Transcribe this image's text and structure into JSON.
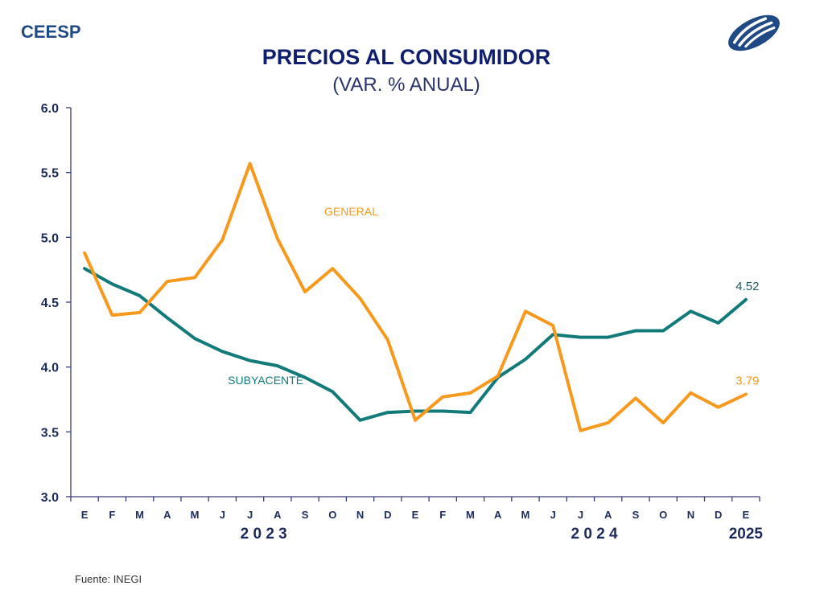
{
  "header": {
    "brand": "CEESP",
    "logo_icon": "ceesp-logo-icon"
  },
  "footer": {
    "source": "Fuente: INEGI"
  },
  "colors": {
    "general": "#f7991c",
    "subyacente": "#127b7a",
    "axis": "#3a3d7c",
    "text": "#1d2a5c",
    "title": "#0f1f6e",
    "brand": "#1f4a86"
  },
  "chart_data": {
    "type": "line",
    "title": "PRECIOS AL CONSUMIDOR",
    "subtitle": "(VAR. % ANUAL)",
    "xlabel": "",
    "ylabel": "",
    "ylim": [
      3.0,
      6.0
    ],
    "yticks": [
      "3.0",
      "3.5",
      "4.0",
      "4.5",
      "5.0",
      "5.5",
      "6.0"
    ],
    "grid": false,
    "categories": [
      "E",
      "F",
      "M",
      "A",
      "M",
      "J",
      "J",
      "A",
      "S",
      "O",
      "N",
      "D",
      "E",
      "F",
      "M",
      "A",
      "M",
      "J",
      "J",
      "A",
      "S",
      "O",
      "N",
      "D",
      "E"
    ],
    "year_labels": [
      {
        "label": "2 0 2 3",
        "at_index": 6.5
      },
      {
        "label": "2 0 2 4",
        "at_index": 18.5
      },
      {
        "label": "2025",
        "at_index": 24
      }
    ],
    "series": [
      {
        "name": "GENERAL",
        "label": "GENERAL",
        "label_at": [
          8.7,
          5.2
        ],
        "end_label": "3.79",
        "values": [
          4.88,
          4.4,
          4.42,
          4.66,
          4.69,
          4.98,
          5.57,
          4.99,
          4.58,
          4.76,
          4.53,
          4.21,
          3.59,
          3.77,
          3.8,
          3.93,
          4.43,
          4.32,
          3.51,
          3.57,
          3.76,
          3.57,
          3.8,
          3.69,
          3.79
        ]
      },
      {
        "name": "SUBYACENTE",
        "label": "SUBYACENTE",
        "label_at": [
          5.2,
          3.9
        ],
        "end_label": "4.52",
        "values": [
          4.76,
          4.64,
          4.55,
          4.38,
          4.22,
          4.12,
          4.05,
          4.01,
          3.92,
          3.81,
          3.59,
          3.65,
          3.66,
          3.66,
          3.65,
          3.92,
          4.06,
          4.25,
          4.23,
          4.23,
          4.28,
          4.28,
          4.43,
          4.34,
          4.52
        ]
      }
    ]
  }
}
